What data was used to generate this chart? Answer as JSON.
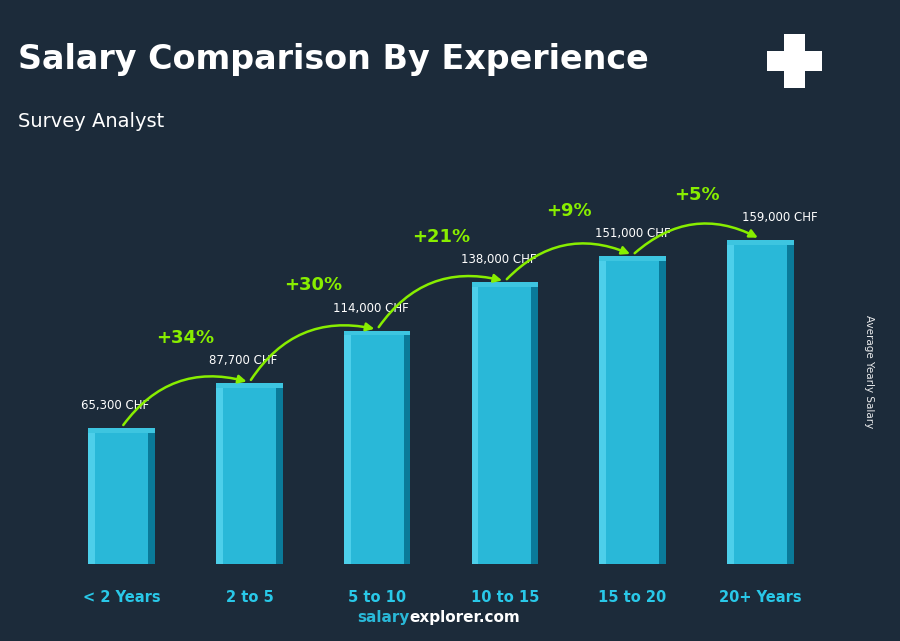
{
  "title": "Salary Comparison By Experience",
  "subtitle": "Survey Analyst",
  "categories": [
    "< 2 Years",
    "2 to 5",
    "5 to 10",
    "10 to 15",
    "15 to 20",
    "20+ Years"
  ],
  "values": [
    65300,
    87700,
    114000,
    138000,
    151000,
    159000
  ],
  "value_labels": [
    "65,300 CHF",
    "87,700 CHF",
    "114,000 CHF",
    "138,000 CHF",
    "151,000 CHF",
    "159,000 CHF"
  ],
  "pct_changes": [
    null,
    "+34%",
    "+30%",
    "+21%",
    "+9%",
    "+5%"
  ],
  "bar_color_face": "#29b8d8",
  "bar_color_left": "#4dcfea",
  "bar_color_right": "#0a7a99",
  "bar_color_top": "#3dc5e0",
  "background_color": "#1c2b3a",
  "title_color": "#ffffff",
  "subtitle_color": "#ffffff",
  "value_label_color": "#ffffff",
  "pct_color": "#88ee00",
  "xlabel_color": "#29c8e8",
  "ylabel_text": "Average Yearly Salary",
  "footer_salary_color": "#29b8d8",
  "footer_explorer_color": "#ffffff",
  "ylim": [
    0,
    185000
  ],
  "bar_width": 0.52,
  "n_bars": 6
}
